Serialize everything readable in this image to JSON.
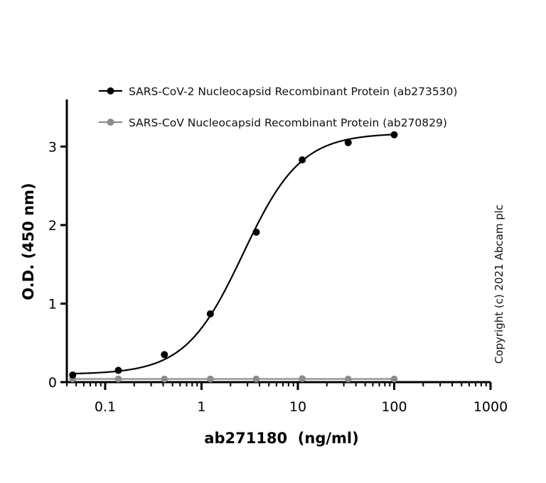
{
  "chart_data": {
    "type": "scatter",
    "title": "",
    "xlabel": "ab271180  (ng/ml)",
    "ylabel": "O.D. (450 nm)",
    "x_scale": "log",
    "xlim": [
      0.04,
      1000
    ],
    "ylim": [
      0,
      3.6
    ],
    "x_ticks": [
      0.1,
      1,
      10,
      100,
      1000
    ],
    "x_tick_labels": [
      "0.1",
      "1",
      "10",
      "100",
      "1000"
    ],
    "y_ticks": [
      0,
      1,
      2,
      3
    ],
    "y_tick_labels": [
      "0",
      "1",
      "2",
      "3"
    ],
    "grid": false,
    "legend_position": "top",
    "annotation": "Copyright (c) 2021 Abcam plc",
    "series": [
      {
        "name": "SARS-CoV-2 Nucleocapsid Recombinant Protein (ab273530)",
        "color": "#000000",
        "fit": "4-parameter logistic",
        "x": [
          0.046,
          0.137,
          0.412,
          1.235,
          3.7,
          11.1,
          33.3,
          100
        ],
        "y": [
          0.09,
          0.15,
          0.35,
          0.87,
          1.91,
          2.83,
          3.05,
          3.15
        ]
      },
      {
        "name": "SARS-CoV Nucleocapsid Recombinant Protein (ab270829)",
        "color": "#8c8c8c",
        "fit": "flat",
        "x": [
          0.046,
          0.137,
          0.412,
          1.235,
          3.7,
          11.1,
          33.3,
          100
        ],
        "y": [
          0.04,
          0.04,
          0.04,
          0.04,
          0.04,
          0.045,
          0.04,
          0.04
        ]
      }
    ]
  }
}
